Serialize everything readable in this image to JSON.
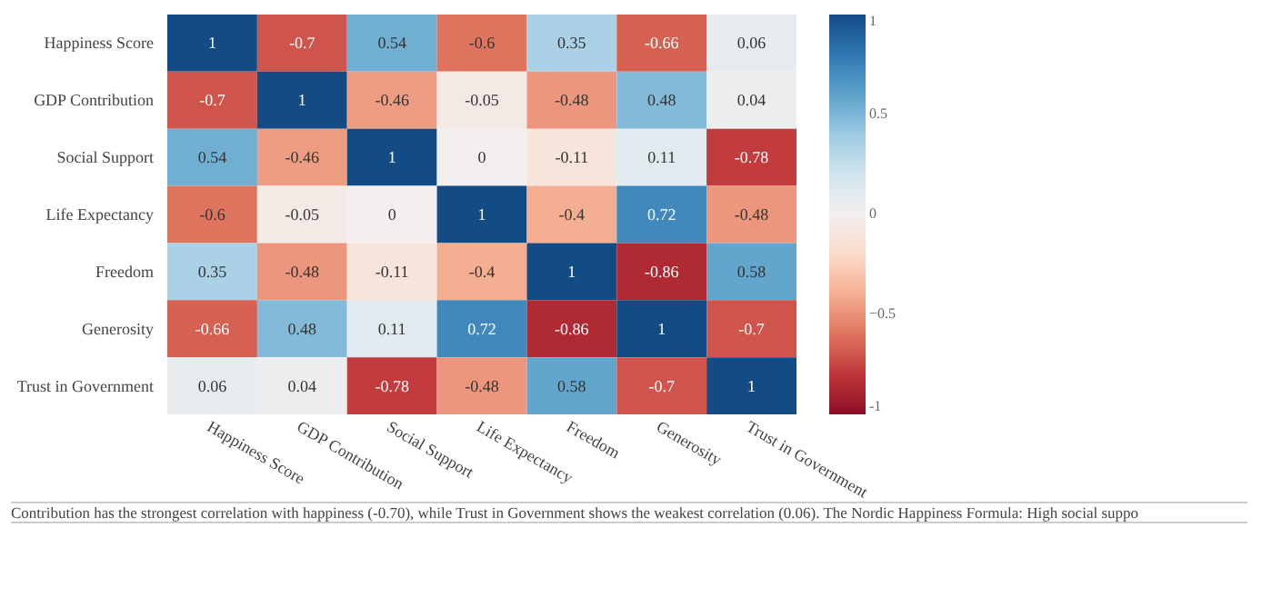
{
  "chart_data": {
    "type": "heatmap",
    "categories": [
      "Happiness Score",
      "GDP Contribution",
      "Social Support",
      "Life Expectancy",
      "Freedom",
      "Generosity",
      "Trust in Government"
    ],
    "y_categories": [
      "Happiness Score",
      "GDP Contribution",
      "Social Support",
      "Life Expectancy",
      "Freedom",
      "Generosity",
      "Trust in Government"
    ],
    "cells": [
      [
        1,
        -0.7,
        0.54,
        -0.6,
        0.35,
        -0.66,
        0.06
      ],
      [
        -0.7,
        1,
        -0.46,
        -0.05,
        -0.48,
        0.48,
        0.04
      ],
      [
        0.54,
        -0.46,
        1,
        0,
        -0.11,
        0.11,
        -0.78
      ],
      [
        -0.6,
        -0.05,
        0,
        1,
        -0.4,
        0.72,
        -0.48
      ],
      [
        0.35,
        -0.48,
        -0.11,
        -0.4,
        1,
        -0.86,
        0.58
      ],
      [
        -0.66,
        0.48,
        0.11,
        0.72,
        -0.86,
        1,
        -0.7
      ],
      [
        0.06,
        0.04,
        -0.78,
        -0.48,
        0.58,
        -0.7,
        1
      ]
    ],
    "clim": [
      -1,
      1
    ],
    "cticks": [
      -1,
      {
        "value": -0.5,
        "label": "−0.5"
      },
      0,
      0.5,
      1
    ],
    "data_labels": true,
    "annotations": [
      "Contribution has the strongest correlation with happiness (-0.70), while Trust in Government shows the weakest correlation (0.06). The Nordic Happiness Formula: High social suppo"
    ]
  }
}
